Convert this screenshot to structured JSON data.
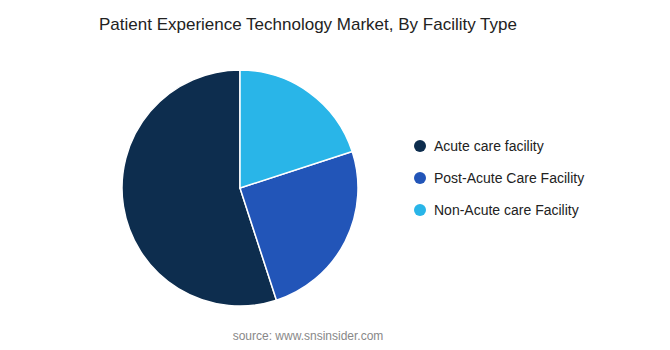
{
  "chart_data": {
    "type": "pie",
    "title": "Patient Experience Technology Market, By Facility Type",
    "categories": [
      "Acute care facility",
      "Post-Acute Care Facility",
      "Non-Acute care Facility"
    ],
    "values": [
      55,
      25,
      20
    ],
    "colors": [
      "#0d2d4e",
      "#2255b8",
      "#29b5e8"
    ],
    "annotations": [
      "source: www.snsinsider.com"
    ],
    "legend": "right"
  }
}
